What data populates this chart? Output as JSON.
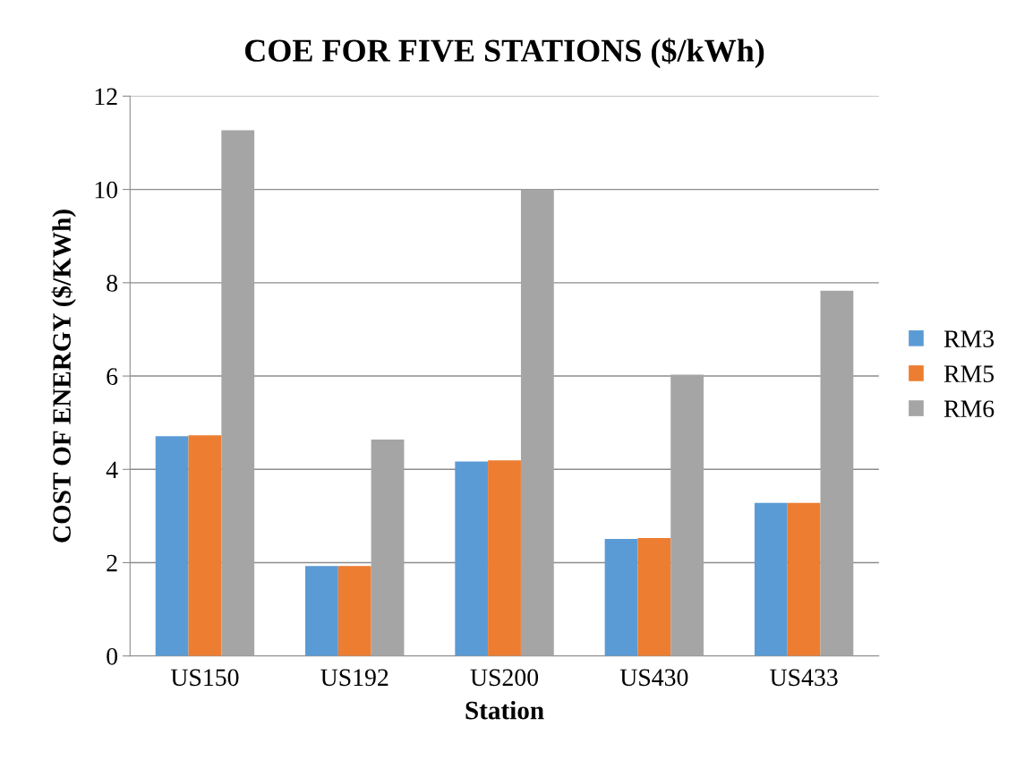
{
  "chart_data": {
    "type": "bar",
    "title": "COE FOR FIVE STATIONS ($/kWh)",
    "xlabel": "Station",
    "ylabel": "COST OF ENERGY ($/KWh)",
    "categories": [
      "US150",
      "US192",
      "US200",
      "US430",
      "US433"
    ],
    "series": [
      {
        "name": "RM3",
        "color": "#5b9bd5",
        "values": [
          4.71,
          1.93,
          4.17,
          2.51,
          3.28
        ]
      },
      {
        "name": "RM5",
        "color": "#ed7d31",
        "values": [
          4.73,
          1.93,
          4.19,
          2.53,
          3.28
        ]
      },
      {
        "name": "RM6",
        "color": "#a5a5a5",
        "values": [
          11.27,
          4.64,
          10.0,
          6.03,
          7.83
        ]
      }
    ],
    "ylim": [
      0,
      12
    ],
    "yticks": [
      0,
      2,
      4,
      6,
      8,
      10,
      12
    ],
    "grid": "y",
    "legend": "right"
  }
}
